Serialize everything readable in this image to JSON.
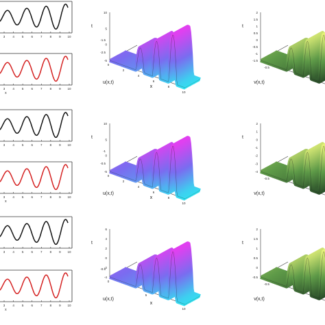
{
  "colors": {
    "u_series": "#111111",
    "v_series": "#d42020",
    "u_surface_low": "#33e0f0",
    "u_surface_high": "#e040f0",
    "v_surface_low": "#1e3b22",
    "v_surface_high": "#e6f27a",
    "mesh": "#1a1a1a",
    "axis": "#333333"
  },
  "chart_data": [
    {
      "type": "line",
      "panel": "row1-u-2d",
      "xlabel": "",
      "x_ticks": [
        "3",
        "4",
        "5",
        "6",
        "7",
        "8",
        "9",
        "10"
      ],
      "series": [
        {
          "values_desc": "oscillation",
          "amplitude_growth": 1.6,
          "cycles": 3.5
        }
      ]
    },
    {
      "type": "line",
      "panel": "row1-v-2d",
      "xlabel": "x",
      "x_ticks": [
        "3",
        "4",
        "5",
        "6",
        "7",
        "8",
        "9",
        "10"
      ],
      "series": [
        {
          "amplitude_growth": 1.6,
          "cycles": 3.5
        }
      ]
    },
    {
      "type": "area",
      "panel": "row1-u-3d",
      "zlabel": "u(x,t)",
      "xlabel": "x",
      "tlabel": "t",
      "t_ticks": [
        "10",
        "5",
        "0",
        "-5"
      ],
      "x_ticks": [
        "0",
        "2",
        "4",
        "6",
        "8",
        "10"
      ],
      "z_ticks": [
        "-2.5",
        "-1.5"
      ]
    },
    {
      "type": "area",
      "panel": "row1-v-3d",
      "zlabel": "v(x,t)",
      "xlabel": "",
      "tlabel": "t",
      "t_ticks": [
        "2",
        "1.5",
        "1",
        "0.5",
        "0",
        "-0.5",
        "-1",
        "-1.5"
      ],
      "x_ticks": [
        "-0.5"
      ],
      "z_ticks": []
    },
    {
      "type": "line",
      "panel": "row2-u-2d",
      "xlabel": "",
      "x_ticks": [
        "3",
        "4",
        "5",
        "6",
        "7",
        "8",
        "9",
        "10"
      ],
      "series": [
        {
          "amplitude_growth": 1.6,
          "cycles": 3.5
        }
      ]
    },
    {
      "type": "line",
      "panel": "row2-v-2d",
      "xlabel": "x",
      "x_ticks": [
        "3",
        "4",
        "5",
        "6",
        "7",
        "8",
        "9",
        "10"
      ],
      "series": [
        {
          "amplitude_growth": 1.6,
          "cycles": 3.5
        }
      ]
    },
    {
      "type": "area",
      "panel": "row2-u-3d",
      "zlabel": "u(x,t)",
      "xlabel": "x",
      "tlabel": "t",
      "t_ticks": [
        "10",
        "5",
        "0",
        "-5"
      ],
      "x_ticks": [
        "0",
        "2",
        "4",
        "6",
        "8",
        "10"
      ],
      "z_ticks": [
        "-0.5",
        "-1"
      ]
    },
    {
      "type": "area",
      "panel": "row2-v-3d",
      "zlabel": "v(x,t)",
      "xlabel": "",
      "tlabel": "t",
      "t_ticks": [
        "2",
        "1",
        "0",
        "-1",
        "-2",
        "-3",
        "-4"
      ],
      "x_ticks": [
        "-0.5"
      ],
      "z_ticks": []
    },
    {
      "type": "line",
      "panel": "row3-u-2d",
      "xlabel": "",
      "x_ticks": [
        "3",
        "4",
        "5",
        "6",
        "7",
        "8",
        "9",
        "10"
      ],
      "series": [
        {
          "amplitude_growth": 1.6,
          "cycles": 3.5
        }
      ]
    },
    {
      "type": "line",
      "panel": "row3-v-2d",
      "xlabel": "x",
      "x_ticks": [
        "3",
        "4",
        "5",
        "6",
        "7",
        "8",
        "9",
        "10"
      ],
      "series": [
        {
          "amplitude_growth": 1.6,
          "cycles": 3.5
        }
      ]
    },
    {
      "type": "area",
      "panel": "row3-u-3d",
      "zlabel": "u(x,t)",
      "xlabel": "x",
      "tlabel": "t",
      "t_ticks": [
        "6",
        "4",
        "2",
        "0",
        "-2",
        "-4"
      ],
      "x_ticks": [
        "0",
        "5",
        "10"
      ],
      "z_ticks": [
        "-0.5"
      ]
    },
    {
      "type": "area",
      "panel": "row3-v-3d",
      "zlabel": "v(x,t)",
      "xlabel": "",
      "tlabel": "t",
      "t_ticks": [
        "2",
        "1.5",
        "1",
        "0.5",
        "0",
        "-0.5"
      ],
      "x_ticks": [
        "-0.5"
      ],
      "z_ticks": []
    }
  ]
}
